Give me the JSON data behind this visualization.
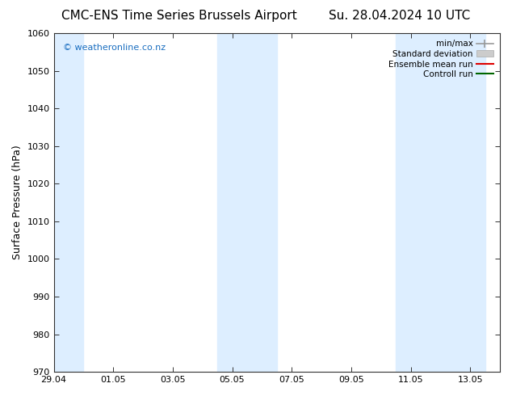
{
  "title_left": "CMC-ENS Time Series Brussels Airport",
  "title_right": "Su. 28.04.2024 10 UTC",
  "ylabel": "Surface Pressure (hPa)",
  "ylim": [
    970,
    1060
  ],
  "yticks": [
    970,
    980,
    990,
    1000,
    1010,
    1020,
    1030,
    1040,
    1050,
    1060
  ],
  "xtick_labels": [
    "29.04",
    "01.05",
    "03.05",
    "05.05",
    "07.05",
    "09.05",
    "11.05",
    "13.05"
  ],
  "xtick_positions": [
    0,
    2,
    4,
    6,
    8,
    10,
    12,
    14
  ],
  "xlim": [
    0,
    15
  ],
  "watermark": "© weatheronline.co.nz",
  "watermark_color": "#1a6ec0",
  "bg_color": "#ffffff",
  "plot_bg_color": "#ffffff",
  "shaded_bands": [
    {
      "x_start": 0.0,
      "x_end": 1.0,
      "color": "#ddeeff"
    },
    {
      "x_start": 5.5,
      "x_end": 7.5,
      "color": "#ddeeff"
    },
    {
      "x_start": 11.5,
      "x_end": 14.5,
      "color": "#ddeeff"
    }
  ],
  "legend_items": [
    {
      "label": "min/max",
      "color": "#aaaaaa",
      "type": "minmax"
    },
    {
      "label": "Standard deviation",
      "color": "#cccccc",
      "type": "stddev"
    },
    {
      "label": "Ensemble mean run",
      "color": "#ff0000",
      "type": "line"
    },
    {
      "label": "Controll run",
      "color": "#006600",
      "type": "line"
    }
  ],
  "title_fontsize": 11,
  "tick_fontsize": 8,
  "axis_label_fontsize": 9,
  "spine_color": "#333333",
  "legend_fontsize": 7.5
}
